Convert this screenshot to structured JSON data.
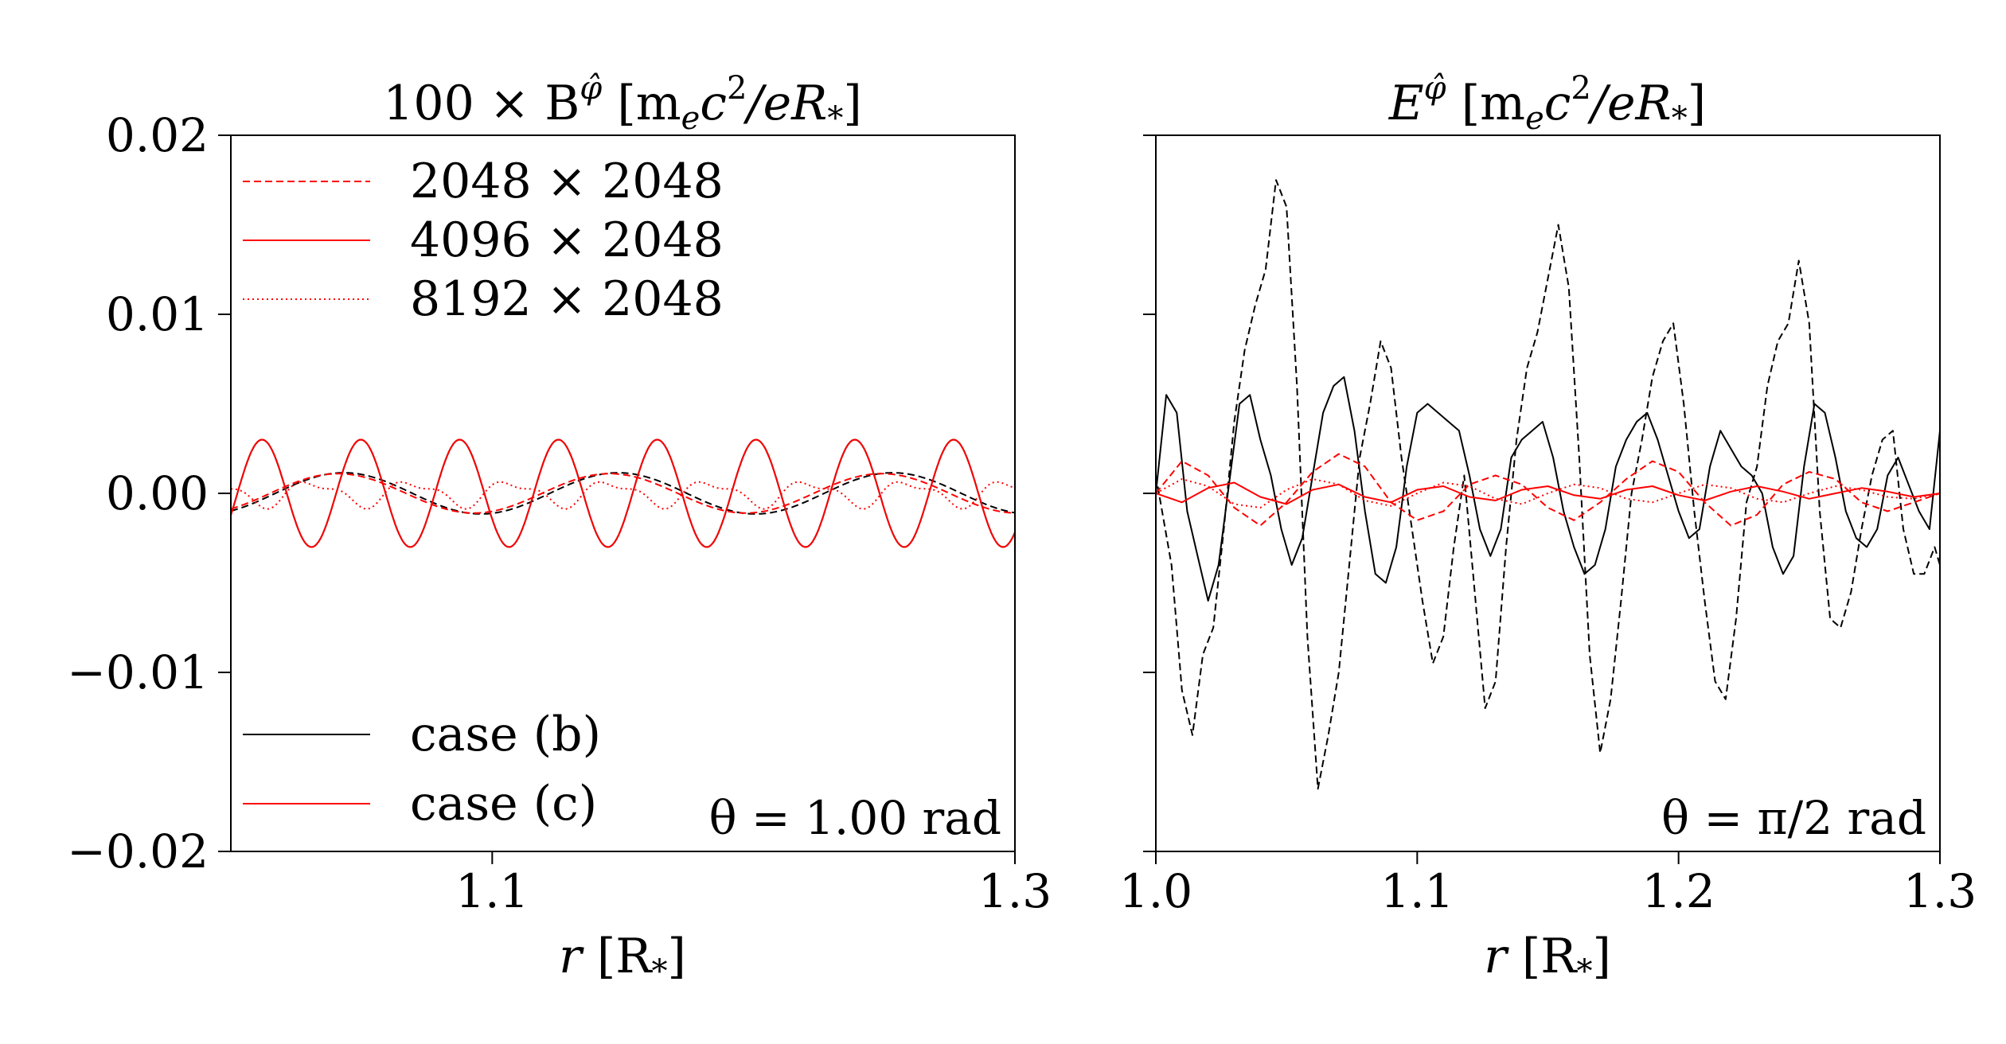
{
  "chart_data": [
    {
      "type": "line",
      "title": "100 × B^φ̂ [m_e c²/eR_*]",
      "title_parts": {
        "prefix": "100 × B",
        "sup": "φ̂",
        "units": " [m",
        "units_sub": "e",
        "units_c": "c",
        "units_sup": "2",
        "units_tail": "/eR",
        "units_sub2": "*",
        "units_close": "]"
      },
      "xlabel": "r [R_*]",
      "xlabel_parts": {
        "var": "r",
        "open": " [R",
        "sub": "*",
        "close": "]"
      },
      "ylabel": "",
      "xlim": [
        1.0,
        1.3
      ],
      "ylim": [
        -0.02,
        0.02
      ],
      "xticks": [
        1.1,
        1.3
      ],
      "xtick_labels": [
        "1.1",
        "1.3"
      ],
      "yticks": [
        0.02,
        0.01,
        0.0,
        -0.01,
        -0.02
      ],
      "ytick_labels": [
        "0.02",
        "0.01",
        "0.00",
        "−0.01",
        "−0.02"
      ],
      "annotation": "θ = 1.00 rad",
      "legend_top": [
        {
          "label": "2048 × 2048",
          "color": "#ff0000",
          "style": "dashed"
        },
        {
          "label": "4096 × 2048",
          "color": "#ff0000",
          "style": "solid"
        },
        {
          "label": "8192 × 2048",
          "color": "#ff0000",
          "style": "dotted"
        }
      ],
      "legend_bottom": [
        {
          "label": "case (b)",
          "color": "#000000",
          "style": "solid"
        },
        {
          "label": "case (c)",
          "color": "#ff0000",
          "style": "solid"
        }
      ],
      "series": [
        {
          "case": "b",
          "resolution": "2048",
          "color": "#000000",
          "style": "dashed",
          "kind": "sine",
          "amp": 0.00115,
          "period": 0.105,
          "phase": 0.072,
          "offset": 0.0
        },
        {
          "case": "b",
          "resolution": "4096",
          "color": "#000000",
          "style": "solid",
          "kind": "sine",
          "amp": 0.003,
          "period": 0.0378,
          "phase": 0.0575,
          "offset": 0.0
        },
        {
          "case": "c",
          "resolution": "2048",
          "color": "#ff0000",
          "style": "dashed",
          "kind": "sine",
          "amp": 0.0011,
          "period": 0.104,
          "phase": 0.079,
          "offset": 0.0
        },
        {
          "case": "c",
          "resolution": "4096",
          "color": "#ff0000",
          "style": "solid",
          "kind": "sine",
          "amp": 0.003,
          "period": 0.0378,
          "phase": 0.0575,
          "offset": 0.0
        },
        {
          "case": "c",
          "resolution": "8192",
          "color": "#ff0000",
          "style": "dotted",
          "kind": "sine2",
          "amp": 0.0009,
          "period": 0.038,
          "phase": 0.034,
          "offset": 0.0
        }
      ]
    },
    {
      "type": "line",
      "title": "E^φ̂ [m_e c²/eR_*]",
      "title_parts": {
        "prefix": "E",
        "sup": "φ̂",
        "units": " [m",
        "units_sub": "e",
        "units_c": "c",
        "units_sup": "2",
        "units_tail": "/eR",
        "units_sub2": "*",
        "units_close": "]"
      },
      "xlabel": "r [R_*]",
      "xlabel_parts": {
        "var": "r",
        "open": " [R",
        "sub": "*",
        "close": "]"
      },
      "ylabel": "",
      "xlim": [
        1.0,
        1.3
      ],
      "ylim": [
        -0.02,
        0.02
      ],
      "xticks": [
        1.0,
        1.1,
        1.2,
        1.3
      ],
      "xtick_labels": [
        "1.0",
        "1.1",
        "1.2",
        "1.3"
      ],
      "yticks": [
        0.02,
        0.01,
        0.0,
        -0.01,
        -0.02
      ],
      "annotation": "θ = π/2 rad",
      "series": [
        {
          "case": "b",
          "resolution": "2048",
          "color": "#000000",
          "style": "dashed",
          "x": [
            1.0,
            1.006,
            1.01,
            1.014,
            1.018,
            1.022,
            1.026,
            1.03,
            1.034,
            1.038,
            1.042,
            1.046,
            1.05,
            1.054,
            1.058,
            1.062,
            1.066,
            1.07,
            1.074,
            1.078,
            1.082,
            1.086,
            1.09,
            1.094,
            1.098,
            1.102,
            1.106,
            1.11,
            1.114,
            1.118,
            1.122,
            1.126,
            1.13,
            1.134,
            1.138,
            1.142,
            1.146,
            1.15,
            1.154,
            1.158,
            1.162,
            1.166,
            1.17,
            1.174,
            1.178,
            1.182,
            1.186,
            1.19,
            1.194,
            1.198,
            1.202,
            1.206,
            1.21,
            1.214,
            1.218,
            1.222,
            1.226,
            1.23,
            1.234,
            1.238,
            1.242,
            1.246,
            1.25,
            1.254,
            1.258,
            1.262,
            1.266,
            1.27,
            1.274,
            1.278,
            1.282,
            1.286,
            1.29,
            1.294,
            1.298,
            1.3
          ],
          "y": [
            0.001,
            -0.004,
            -0.011,
            -0.0135,
            -0.009,
            -0.0075,
            -0.002,
            0.004,
            0.008,
            0.0105,
            0.0125,
            0.0175,
            0.016,
            0.006,
            -0.008,
            -0.0165,
            -0.0135,
            -0.01,
            -0.004,
            0.002,
            0.005,
            0.0085,
            0.007,
            0.002,
            -0.002,
            -0.006,
            -0.0095,
            -0.008,
            -0.003,
            0.001,
            -0.0055,
            -0.012,
            -0.0105,
            -0.003,
            0.003,
            0.007,
            0.009,
            0.012,
            0.015,
            0.0115,
            0.002,
            -0.009,
            -0.0145,
            -0.0115,
            -0.006,
            0.0,
            0.003,
            0.0065,
            0.0085,
            0.0095,
            0.005,
            -0.001,
            -0.006,
            -0.0105,
            -0.0115,
            -0.007,
            -0.0005,
            0.0015,
            0.006,
            0.0085,
            0.0095,
            0.013,
            0.0095,
            -0.001,
            -0.007,
            -0.0075,
            -0.0055,
            -0.002,
            0.001,
            0.003,
            0.0035,
            -0.002,
            -0.0045,
            -0.0045,
            -0.003,
            -0.004
          ]
        },
        {
          "case": "b",
          "resolution": "4096",
          "color": "#000000",
          "style": "solid",
          "x": [
            1.0,
            1.004,
            1.008,
            1.012,
            1.016,
            1.02,
            1.024,
            1.028,
            1.032,
            1.036,
            1.04,
            1.044,
            1.048,
            1.052,
            1.056,
            1.06,
            1.064,
            1.068,
            1.072,
            1.076,
            1.08,
            1.084,
            1.088,
            1.092,
            1.096,
            1.1,
            1.104,
            1.108,
            1.112,
            1.116,
            1.12,
            1.124,
            1.128,
            1.132,
            1.136,
            1.14,
            1.144,
            1.148,
            1.152,
            1.156,
            1.16,
            1.164,
            1.168,
            1.172,
            1.176,
            1.18,
            1.184,
            1.188,
            1.192,
            1.196,
            1.2,
            1.204,
            1.208,
            1.212,
            1.216,
            1.22,
            1.224,
            1.228,
            1.232,
            1.236,
            1.24,
            1.244,
            1.248,
            1.252,
            1.256,
            1.26,
            1.264,
            1.268,
            1.272,
            1.276,
            1.28,
            1.284,
            1.288,
            1.292,
            1.296,
            1.3
          ],
          "y": [
            0.0,
            0.0055,
            0.0045,
            -0.001,
            -0.0035,
            -0.006,
            -0.004,
            0.0005,
            0.005,
            0.0055,
            0.003,
            0.001,
            -0.002,
            -0.004,
            -0.0025,
            0.001,
            0.0045,
            0.006,
            0.0065,
            0.0035,
            -0.001,
            -0.0045,
            -0.005,
            -0.003,
            0.0015,
            0.0045,
            0.005,
            0.0045,
            0.004,
            0.0035,
            0.001,
            -0.002,
            -0.0035,
            -0.002,
            0.002,
            0.003,
            0.0035,
            0.004,
            0.002,
            -0.001,
            -0.003,
            -0.0045,
            -0.004,
            -0.002,
            0.0015,
            0.003,
            0.004,
            0.0045,
            0.003,
            0.001,
            -0.001,
            -0.0025,
            -0.002,
            0.0015,
            0.0035,
            0.0025,
            0.0015,
            0.001,
            0.0,
            -0.003,
            -0.0045,
            -0.0035,
            0.0015,
            0.005,
            0.0045,
            0.002,
            -0.001,
            -0.0025,
            -0.003,
            -0.002,
            0.001,
            0.002,
            0.0005,
            -0.001,
            -0.002,
            0.0035
          ]
        },
        {
          "case": "c",
          "resolution": "2048",
          "color": "#ff0000",
          "style": "dashed",
          "x": [
            1.0,
            1.01,
            1.02,
            1.03,
            1.04,
            1.05,
            1.06,
            1.07,
            1.08,
            1.09,
            1.1,
            1.11,
            1.12,
            1.13,
            1.14,
            1.15,
            1.16,
            1.17,
            1.18,
            1.19,
            1.2,
            1.21,
            1.22,
            1.23,
            1.24,
            1.25,
            1.26,
            1.27,
            1.28,
            1.29,
            1.3
          ],
          "y": [
            0.0,
            0.0018,
            0.001,
            -0.0008,
            -0.0018,
            -0.0005,
            0.0012,
            0.0022,
            0.0015,
            -0.0005,
            -0.0015,
            -0.001,
            0.0005,
            0.001,
            0.0005,
            -0.0008,
            -0.0015,
            -0.0005,
            0.0008,
            0.0018,
            0.0012,
            -0.0005,
            -0.0018,
            -0.0012,
            0.0005,
            0.0012,
            0.0008,
            -0.0005,
            -0.001,
            -0.0005,
            0.0
          ]
        },
        {
          "case": "c",
          "resolution": "4096",
          "color": "#ff0000",
          "style": "solid",
          "x": [
            1.0,
            1.01,
            1.02,
            1.03,
            1.04,
            1.05,
            1.06,
            1.07,
            1.08,
            1.09,
            1.1,
            1.11,
            1.12,
            1.13,
            1.14,
            1.15,
            1.16,
            1.17,
            1.18,
            1.19,
            1.2,
            1.21,
            1.22,
            1.23,
            1.24,
            1.25,
            1.26,
            1.27,
            1.28,
            1.29,
            1.3
          ],
          "y": [
            0.0,
            -0.0005,
            0.0003,
            0.0006,
            -0.0002,
            -0.0006,
            0.0002,
            0.0005,
            -0.0002,
            -0.0005,
            0.0002,
            0.0004,
            -0.0002,
            -0.0004,
            0.0002,
            0.0004,
            -0.0001,
            -0.0003,
            0.0002,
            0.0004,
            -0.0001,
            -0.0004,
            0.0001,
            0.0004,
            0.0001,
            -0.0003,
            0.0,
            0.0003,
            0.0001,
            -0.0002,
            0.0
          ]
        },
        {
          "case": "c",
          "resolution": "8192",
          "color": "#ff0000",
          "style": "dotted",
          "x": [
            1.0,
            1.01,
            1.02,
            1.03,
            1.04,
            1.05,
            1.06,
            1.07,
            1.08,
            1.09,
            1.1,
            1.11,
            1.12,
            1.13,
            1.14,
            1.15,
            1.16,
            1.17,
            1.18,
            1.19,
            1.2,
            1.21,
            1.22,
            1.23,
            1.24,
            1.25,
            1.26,
            1.27,
            1.28,
            1.29,
            1.3
          ],
          "y": [
            0.0,
            0.0008,
            0.0004,
            -0.0006,
            -0.0008,
            0.0002,
            0.0008,
            0.0005,
            -0.0004,
            -0.0007,
            0.0,
            0.0006,
            0.0004,
            -0.0003,
            -0.0006,
            0.0,
            0.0005,
            0.0003,
            -0.0003,
            -0.0005,
            0.0,
            0.0005,
            0.0003,
            -0.0003,
            -0.0005,
            0.0,
            0.0004,
            0.0002,
            -0.0002,
            -0.0003,
            0.0
          ]
        }
      ]
    }
  ]
}
